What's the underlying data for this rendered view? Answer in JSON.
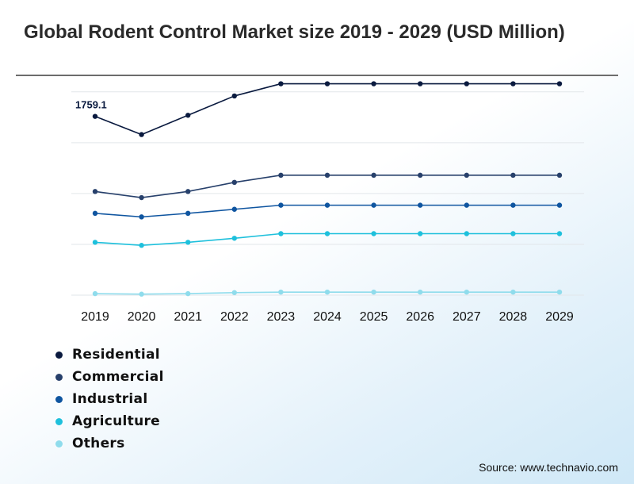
{
  "title": "Global Rodent Control Market size 2019 - 2029 (USD Million)",
  "source": "Source: www.technavio.com",
  "chart_data": {
    "type": "line",
    "title": "Global Rodent Control Market size 2019 - 2029 (USD Million)",
    "xlabel": "",
    "ylabel": "",
    "x": [
      "2019",
      "2020",
      "2021",
      "2022",
      "2023",
      "2024",
      "2025",
      "2026",
      "2027",
      "2028",
      "2029"
    ],
    "ylim": [
      0,
      2100
    ],
    "grid": true,
    "y_gridlines": [
      0,
      500,
      1000,
      1500,
      2000
    ],
    "legend_position": "bottom-left",
    "annotations": [
      {
        "series": "Residential",
        "x": "2019",
        "text": "1759.1"
      }
    ],
    "series": [
      {
        "name": "Residential",
        "color": "#0a1a3f",
        "values": [
          1759.1,
          1580,
          1770,
          1960,
          2080,
          2080,
          2080,
          2080,
          2080,
          2080,
          2080
        ]
      },
      {
        "name": "Commercial",
        "color": "#27406b",
        "values": [
          1020,
          960,
          1020,
          1110,
          1180,
          1180,
          1180,
          1180,
          1180,
          1180,
          1180
        ]
      },
      {
        "name": "Industrial",
        "color": "#0f55a0",
        "values": [
          805,
          770,
          805,
          845,
          885,
          885,
          885,
          885,
          885,
          885,
          885
        ]
      },
      {
        "name": "Agriculture",
        "color": "#1ec0dc",
        "values": [
          520,
          490,
          520,
          560,
          605,
          605,
          605,
          605,
          605,
          605,
          605
        ]
      },
      {
        "name": "Others",
        "color": "#8fdcec",
        "values": [
          15,
          10,
          15,
          25,
          30,
          30,
          30,
          30,
          30,
          30,
          30
        ]
      }
    ]
  }
}
